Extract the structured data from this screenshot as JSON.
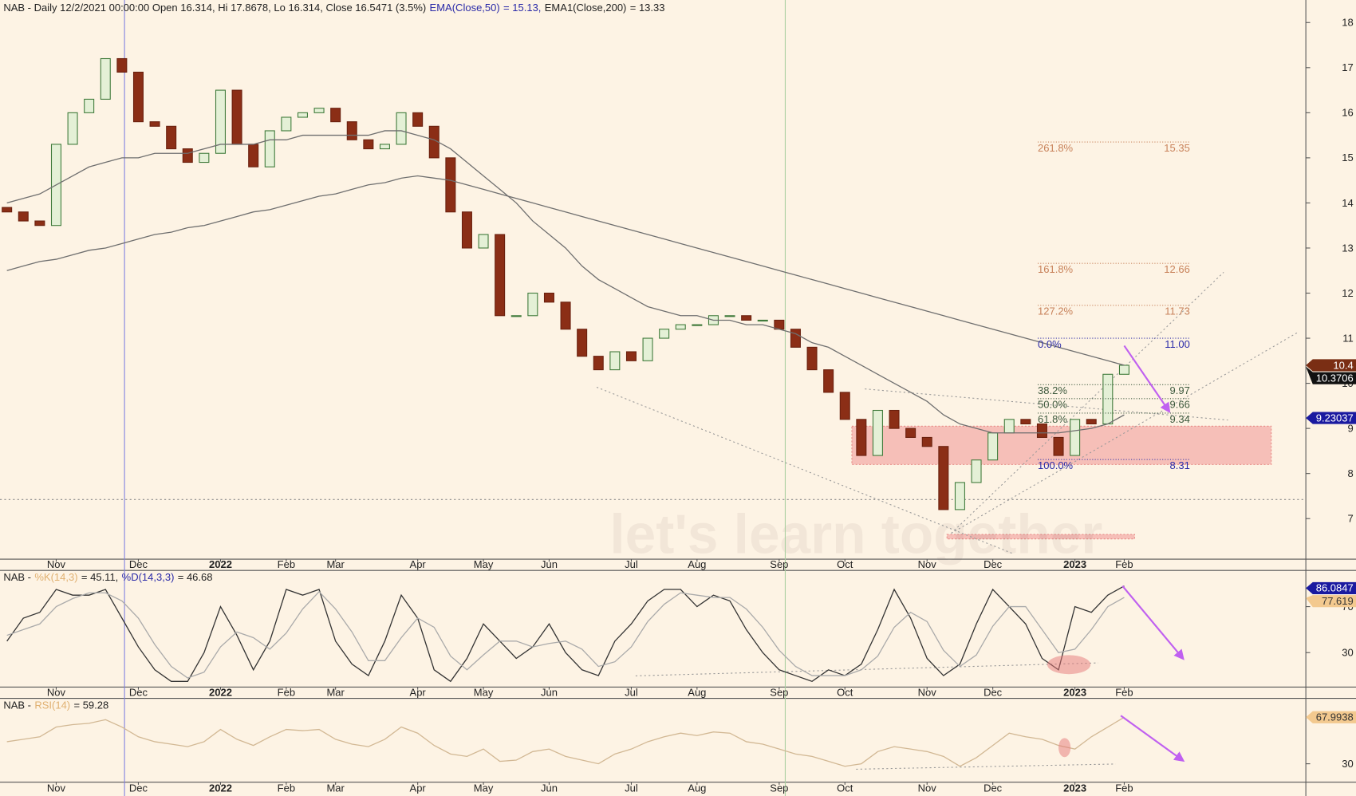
{
  "chart_data": [
    {
      "type": "candlestick",
      "title": "NAB - Daily 12/2/2021 00:00:00 Open 16.314, Hi 17.8678, Lo 16.314, Close 16.5471 (3.5%)",
      "watermark": "let's learn together",
      "categories": [
        null,
        null,
        null,
        "Nov",
        null,
        null,
        null,
        null,
        "Dec",
        null,
        null,
        null,
        null,
        "2022",
        null,
        null,
        null,
        "Feb",
        null,
        null,
        "Mar",
        null,
        null,
        null,
        null,
        "Apr",
        null,
        null,
        null,
        "May",
        null,
        null,
        null,
        "Jun",
        null,
        null,
        null,
        null,
        "Jul",
        null,
        null,
        null,
        "Aug",
        null,
        null,
        null,
        null,
        "Sep",
        null,
        null,
        null,
        "Oct",
        null,
        null,
        null,
        null,
        "Nov",
        null,
        null,
        null,
        "Dec",
        null,
        null,
        null,
        null,
        "2023",
        null,
        null,
        "Feb"
      ],
      "open": [
        13.9,
        13.8,
        13.6,
        13.5,
        15.3,
        16.0,
        16.3,
        17.2,
        16.9,
        15.8,
        15.7,
        15.2,
        14.9,
        15.1,
        16.5,
        15.3,
        14.8,
        15.6,
        15.9,
        16.0,
        16.1,
        15.8,
        15.4,
        15.2,
        15.3,
        16.0,
        15.7,
        15.0,
        13.8,
        13.0,
        13.3,
        11.5,
        11.5,
        12.0,
        11.8,
        11.2,
        10.6,
        10.3,
        10.7,
        10.5,
        11.0,
        11.2,
        11.3,
        11.3,
        11.5,
        11.5,
        11.4,
        11.4,
        11.2,
        10.8,
        10.3,
        9.8,
        9.2,
        8.4,
        9.4,
        9.0,
        8.8,
        8.6,
        7.2,
        7.8,
        8.3,
        8.9,
        9.2,
        9.1,
        8.8,
        8.4,
        9.2,
        9.1,
        10.2
      ],
      "close": [
        13.8,
        13.6,
        13.5,
        15.3,
        16.0,
        16.3,
        17.2,
        16.9,
        15.8,
        15.7,
        15.2,
        14.9,
        15.1,
        16.5,
        15.3,
        14.8,
        15.6,
        15.9,
        16.0,
        16.1,
        15.8,
        15.4,
        15.2,
        15.3,
        16.0,
        15.7,
        15.0,
        13.8,
        13.0,
        13.3,
        11.5,
        11.5,
        12.0,
        11.8,
        11.2,
        10.6,
        10.3,
        10.7,
        10.5,
        11.0,
        11.2,
        11.3,
        11.3,
        11.5,
        11.5,
        11.4,
        11.4,
        11.2,
        10.8,
        10.3,
        9.8,
        9.2,
        8.4,
        9.4,
        9.0,
        8.8,
        8.6,
        7.2,
        7.8,
        8.3,
        8.9,
        9.2,
        9.1,
        8.8,
        8.4,
        9.2,
        9.1,
        10.2,
        10.4
      ],
      "series": [
        {
          "name": "EMA(Close,50)",
          "label": "= 15.13,",
          "color": "#6f6f6f",
          "text_color": "#2a2aa8",
          "values": [
            14.0,
            14.1,
            14.2,
            14.4,
            14.6,
            14.8,
            14.9,
            15.0,
            15.0,
            15.1,
            15.1,
            15.1,
            15.2,
            15.3,
            15.3,
            15.3,
            15.4,
            15.4,
            15.5,
            15.5,
            15.5,
            15.5,
            15.5,
            15.6,
            15.6,
            15.5,
            15.4,
            15.2,
            14.9,
            14.6,
            14.3,
            14.0,
            13.6,
            13.3,
            13.0,
            12.6,
            12.3,
            12.1,
            11.9,
            11.7,
            11.6,
            11.5,
            11.5,
            11.4,
            11.4,
            11.3,
            11.3,
            11.2,
            11.1,
            10.9,
            10.8,
            10.6,
            10.4,
            10.2,
            10.0,
            9.8,
            9.6,
            9.3,
            9.1,
            9.0,
            8.9,
            8.9,
            8.9,
            8.9,
            8.9,
            8.95,
            9.0,
            9.1,
            9.3
          ]
        },
        {
          "name": "EMA1(Close,200)",
          "label": "= 13.33",
          "color": "#6f6f6f",
          "text_color": "#222222",
          "values": [
            12.5,
            12.6,
            12.7,
            12.75,
            12.85,
            12.95,
            13.0,
            13.1,
            13.2,
            13.3,
            13.35,
            13.45,
            13.5,
            13.6,
            13.7,
            13.8,
            13.85,
            13.95,
            14.05,
            14.15,
            14.2,
            14.3,
            14.4,
            14.45,
            14.55,
            14.6,
            14.55,
            14.5,
            14.4,
            14.3,
            14.2,
            14.1,
            14.0,
            13.9,
            13.8,
            13.7,
            13.6,
            13.5,
            13.4,
            13.3,
            13.2,
            13.1,
            13.0,
            12.9,
            12.8,
            12.7,
            12.6,
            12.5,
            12.4,
            12.3,
            12.2,
            12.1,
            12.0,
            11.9,
            11.8,
            11.7,
            11.6,
            11.5,
            11.4,
            11.3,
            11.2,
            11.1,
            11.0,
            10.9,
            10.8,
            10.7,
            10.6,
            10.5,
            10.4
          ]
        }
      ],
      "fib": {
        "levels": [
          "261.8%",
          "161.8%",
          "127.2%",
          "0.0%",
          "38.2%",
          "50.0%",
          "61.8%",
          "100.0%"
        ],
        "values": [
          15.35,
          12.66,
          11.73,
          11.0,
          9.97,
          9.66,
          9.34,
          8.31
        ],
        "value_labels": [
          "15.35",
          "12.66",
          "11.73",
          "11.00",
          "9.97",
          "9.66",
          "9.34",
          "8.31"
        ],
        "colors": [
          "#c8825a",
          "#c8825a",
          "#c8825a",
          "#2a2aa8",
          "#3e5a3e",
          "#3e5a3e",
          "#3e5a3e",
          "#2a2aa8"
        ]
      },
      "zones": [
        {
          "low": 8.2,
          "high": 9.05
        },
        {
          "low": 6.55,
          "high": 6.65
        }
      ],
      "ylim": [
        6.1,
        18.5
      ],
      "yticks": [
        7,
        8,
        9,
        10,
        11,
        12,
        13,
        14,
        15,
        16,
        17,
        18
      ],
      "price_tags": [
        {
          "value": 10.4,
          "color": "#7a2e14",
          "text_color": "#ffffff"
        },
        {
          "value": 10.3706,
          "color": "#111111",
          "text_color": "#ffffff"
        },
        {
          "value": 9.23037,
          "color": "#1a1aa0",
          "text_color": "#ffffff"
        }
      ]
    },
    {
      "type": "line",
      "title": "NAB -",
      "series": [
        {
          "name": "%K(14,3)",
          "label": "= 45.11,",
          "color": "#333333",
          "text_color": "#e0b070",
          "values": [
            40,
            60,
            65,
            85,
            80,
            80,
            85,
            60,
            35,
            15,
            5,
            5,
            30,
            70,
            45,
            15,
            40,
            85,
            80,
            85,
            40,
            20,
            10,
            40,
            80,
            60,
            15,
            5,
            25,
            55,
            40,
            25,
            35,
            55,
            30,
            15,
            10,
            40,
            55,
            75,
            85,
            85,
            70,
            80,
            75,
            50,
            30,
            15,
            10,
            5,
            15,
            10,
            20,
            50,
            85,
            60,
            25,
            10,
            20,
            55,
            85,
            70,
            55,
            25,
            15,
            70,
            65,
            80,
            88
          ]
        },
        {
          "name": "%D(14,3,3)",
          "label": "= 46.68",
          "color": "#aaaaaa",
          "text_color": "#2a2aa8",
          "values": [
            45,
            50,
            55,
            70,
            77,
            82,
            82,
            75,
            60,
            37,
            18,
            8,
            13,
            35,
            48,
            43,
            33,
            47,
            68,
            83,
            68,
            48,
            23,
            23,
            43,
            60,
            52,
            27,
            15,
            28,
            40,
            40,
            35,
            38,
            40,
            33,
            18,
            22,
            35,
            57,
            72,
            82,
            80,
            78,
            78,
            68,
            52,
            32,
            18,
            10,
            10,
            10,
            15,
            27,
            52,
            65,
            57,
            32,
            18,
            28,
            53,
            70,
            70,
            50,
            30,
            33,
            50,
            70,
            78
          ]
        }
      ],
      "ylim": [
        0,
        100
      ],
      "yticks": [
        30,
        70
      ],
      "price_tags": [
        {
          "value": 86.0847,
          "color": "#1a1aa0",
          "text_color": "#ffffff"
        },
        {
          "value": 77.619,
          "color": "#f3c98f",
          "text_color": "#333333"
        }
      ]
    },
    {
      "type": "line",
      "title": "NAB -",
      "series": [
        {
          "name": "RSI(14)",
          "label": "= 59.28",
          "color": "#d2b894",
          "text_color": "#e0b070",
          "values": [
            48,
            50,
            52,
            60,
            62,
            63,
            66,
            60,
            52,
            48,
            46,
            44,
            48,
            58,
            50,
            45,
            52,
            58,
            57,
            58,
            50,
            46,
            44,
            50,
            60,
            55,
            45,
            38,
            36,
            42,
            32,
            33,
            40,
            42,
            36,
            33,
            30,
            38,
            42,
            48,
            52,
            55,
            53,
            56,
            55,
            48,
            46,
            42,
            38,
            36,
            32,
            28,
            30,
            40,
            44,
            42,
            40,
            36,
            28,
            35,
            45,
            55,
            52,
            50,
            45,
            42,
            52,
            60,
            68
          ]
        }
      ],
      "ylim": [
        15,
        82
      ],
      "yticks": [
        30
      ],
      "price_tags": [
        {
          "value": 67.9938,
          "color": "#f3c98f",
          "text_color": "#333333"
        }
      ]
    }
  ]
}
